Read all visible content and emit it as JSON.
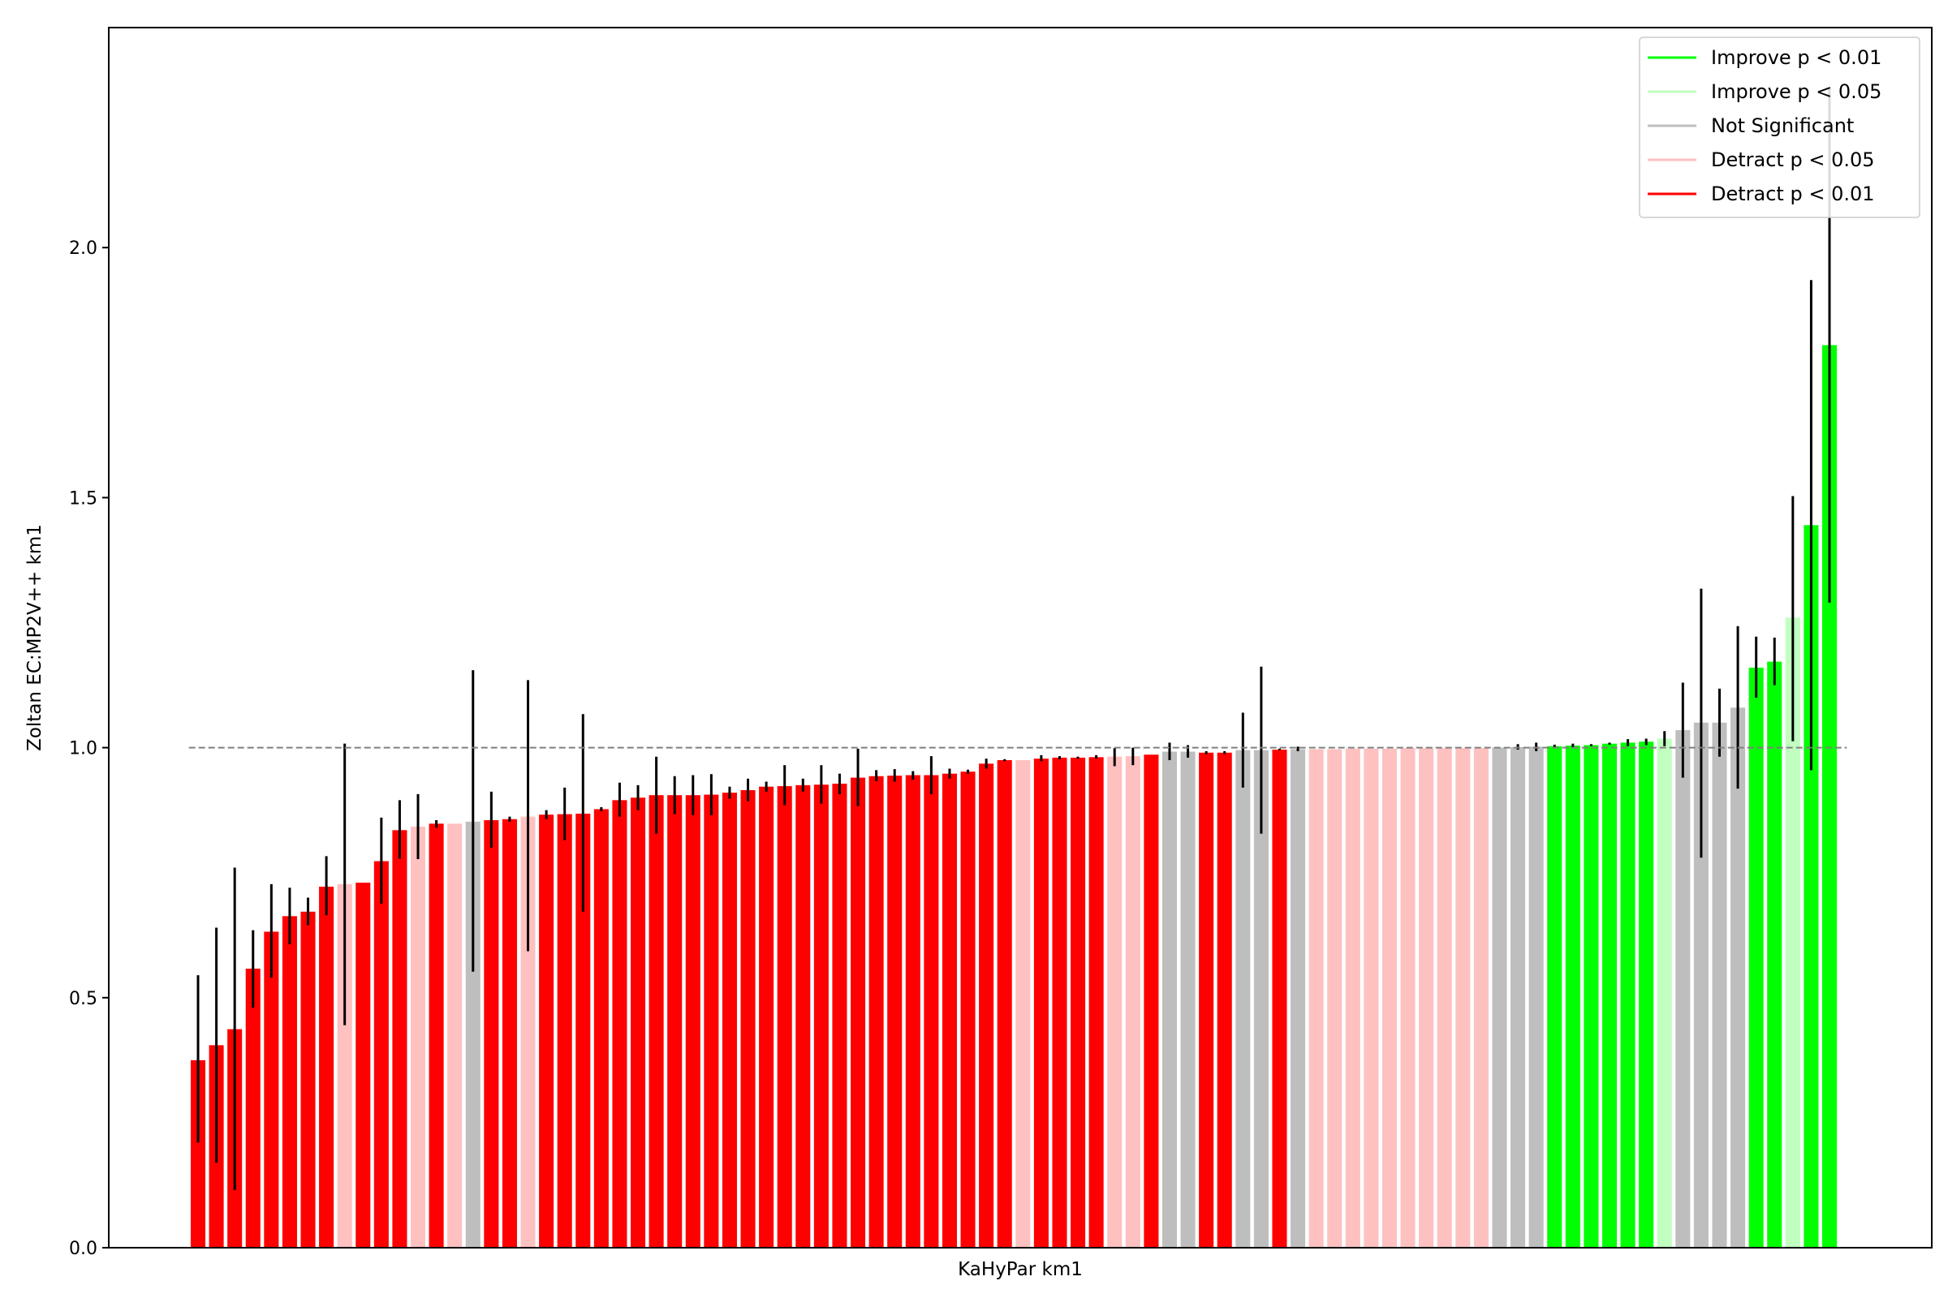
{
  "chart_data": {
    "type": "bar",
    "xlabel": "KaHyPar km1",
    "ylabel": "Zoltan EC:MP2V++ km1",
    "ylim": [
      0,
      2.44
    ],
    "yticks": [
      "0.0",
      "0.5",
      "1.0",
      "1.5",
      "2.0"
    ],
    "reference_line": 1.0,
    "colors": {
      "improve_01": "#00ff00",
      "improve_05": "#c0ffc0",
      "not_significant": "#bebebe",
      "detract_05": "#ffc0c0",
      "detract_01": "#ff0000",
      "error_bar": "#000000",
      "reference_line": "#808080"
    },
    "legend": {
      "placement": "top-right",
      "entries": [
        {
          "label": "Improve p < 0.01",
          "category": "improve_01"
        },
        {
          "label": "Improve p < 0.05",
          "category": "improve_05"
        },
        {
          "label": "Not Significant",
          "category": "not_significant"
        },
        {
          "label": "Detract p < 0.05",
          "category": "detract_05"
        },
        {
          "label": "Detract p < 0.01",
          "category": "detract_01"
        }
      ]
    },
    "bars": [
      {
        "v": 0.375,
        "lo": 0.21,
        "hi": 0.545,
        "c": "detract_01"
      },
      {
        "v": 0.405,
        "lo": 0.17,
        "hi": 0.64,
        "c": "detract_01"
      },
      {
        "v": 0.437,
        "lo": 0.115,
        "hi": 0.76,
        "c": "detract_01"
      },
      {
        "v": 0.558,
        "lo": 0.48,
        "hi": 0.635,
        "c": "detract_01"
      },
      {
        "v": 0.632,
        "lo": 0.54,
        "hi": 0.727,
        "c": "detract_01"
      },
      {
        "v": 0.663,
        "lo": 0.607,
        "hi": 0.72,
        "c": "detract_01"
      },
      {
        "v": 0.672,
        "lo": 0.645,
        "hi": 0.7,
        "c": "detract_01"
      },
      {
        "v": 0.722,
        "lo": 0.665,
        "hi": 0.783,
        "c": "detract_01"
      },
      {
        "v": 0.727,
        "lo": 0.445,
        "hi": 1.008,
        "c": "detract_05"
      },
      {
        "v": 0.73,
        "lo": 0.73,
        "hi": 0.73,
        "c": "detract_01"
      },
      {
        "v": 0.773,
        "lo": 0.688,
        "hi": 0.86,
        "c": "detract_01"
      },
      {
        "v": 0.835,
        "lo": 0.778,
        "hi": 0.895,
        "c": "detract_01"
      },
      {
        "v": 0.842,
        "lo": 0.777,
        "hi": 0.907,
        "c": "detract_05"
      },
      {
        "v": 0.848,
        "lo": 0.84,
        "hi": 0.855,
        "c": "detract_01"
      },
      {
        "v": 0.848,
        "lo": 0.848,
        "hi": 0.848,
        "c": "detract_05"
      },
      {
        "v": 0.852,
        "lo": 0.552,
        "hi": 1.155,
        "c": "not_significant"
      },
      {
        "v": 0.855,
        "lo": 0.8,
        "hi": 0.912,
        "c": "detract_01"
      },
      {
        "v": 0.857,
        "lo": 0.852,
        "hi": 0.862,
        "c": "detract_01"
      },
      {
        "v": 0.862,
        "lo": 0.593,
        "hi": 1.135,
        "c": "detract_05"
      },
      {
        "v": 0.866,
        "lo": 0.857,
        "hi": 0.875,
        "c": "detract_01"
      },
      {
        "v": 0.867,
        "lo": 0.815,
        "hi": 0.92,
        "c": "detract_01"
      },
      {
        "v": 0.868,
        "lo": 0.672,
        "hi": 1.067,
        "c": "detract_01"
      },
      {
        "v": 0.877,
        "lo": 0.873,
        "hi": 0.881,
        "c": "detract_01"
      },
      {
        "v": 0.895,
        "lo": 0.862,
        "hi": 0.93,
        "c": "detract_01"
      },
      {
        "v": 0.9,
        "lo": 0.875,
        "hi": 0.925,
        "c": "detract_01"
      },
      {
        "v": 0.905,
        "lo": 0.828,
        "hi": 0.982,
        "c": "detract_01"
      },
      {
        "v": 0.905,
        "lo": 0.867,
        "hi": 0.943,
        "c": "detract_01"
      },
      {
        "v": 0.905,
        "lo": 0.865,
        "hi": 0.945,
        "c": "detract_01"
      },
      {
        "v": 0.906,
        "lo": 0.865,
        "hi": 0.947,
        "c": "detract_01"
      },
      {
        "v": 0.91,
        "lo": 0.898,
        "hi": 0.922,
        "c": "detract_01"
      },
      {
        "v": 0.915,
        "lo": 0.893,
        "hi": 0.938,
        "c": "detract_01"
      },
      {
        "v": 0.922,
        "lo": 0.912,
        "hi": 0.932,
        "c": "detract_01"
      },
      {
        "v": 0.923,
        "lo": 0.885,
        "hi": 0.965,
        "c": "detract_01"
      },
      {
        "v": 0.925,
        "lo": 0.912,
        "hi": 0.938,
        "c": "detract_01"
      },
      {
        "v": 0.926,
        "lo": 0.888,
        "hi": 0.965,
        "c": "detract_01"
      },
      {
        "v": 0.928,
        "lo": 0.907,
        "hi": 0.948,
        "c": "detract_01"
      },
      {
        "v": 0.94,
        "lo": 0.883,
        "hi": 0.998,
        "c": "detract_01"
      },
      {
        "v": 0.943,
        "lo": 0.933,
        "hi": 0.955,
        "c": "detract_01"
      },
      {
        "v": 0.944,
        "lo": 0.932,
        "hi": 0.957,
        "c": "detract_01"
      },
      {
        "v": 0.945,
        "lo": 0.936,
        "hi": 0.953,
        "c": "detract_01"
      },
      {
        "v": 0.945,
        "lo": 0.907,
        "hi": 0.983,
        "c": "detract_01"
      },
      {
        "v": 0.948,
        "lo": 0.938,
        "hi": 0.958,
        "c": "detract_01"
      },
      {
        "v": 0.952,
        "lo": 0.948,
        "hi": 0.956,
        "c": "detract_01"
      },
      {
        "v": 0.968,
        "lo": 0.958,
        "hi": 0.978,
        "c": "detract_01"
      },
      {
        "v": 0.975,
        "lo": 0.973,
        "hi": 0.977,
        "c": "detract_01"
      },
      {
        "v": 0.975,
        "lo": 0.975,
        "hi": 0.975,
        "c": "detract_05"
      },
      {
        "v": 0.978,
        "lo": 0.973,
        "hi": 0.985,
        "c": "detract_01"
      },
      {
        "v": 0.98,
        "lo": 0.977,
        "hi": 0.983,
        "c": "detract_01"
      },
      {
        "v": 0.98,
        "lo": 0.978,
        "hi": 0.982,
        "c": "detract_01"
      },
      {
        "v": 0.981,
        "lo": 0.978,
        "hi": 0.985,
        "c": "detract_01"
      },
      {
        "v": 0.982,
        "lo": 0.963,
        "hi": 0.999,
        "c": "detract_05"
      },
      {
        "v": 0.983,
        "lo": 0.965,
        "hi": 1.0,
        "c": "detract_05"
      },
      {
        "v": 0.986,
        "lo": 0.986,
        "hi": 0.986,
        "c": "detract_01"
      },
      {
        "v": 0.992,
        "lo": 0.975,
        "hi": 1.01,
        "c": "not_significant"
      },
      {
        "v": 0.992,
        "lo": 0.98,
        "hi": 1.005,
        "c": "not_significant"
      },
      {
        "v": 0.99,
        "lo": 0.987,
        "hi": 0.993,
        "c": "detract_01"
      },
      {
        "v": 0.99,
        "lo": 0.987,
        "hi": 0.993,
        "c": "detract_01"
      },
      {
        "v": 0.995,
        "lo": 0.92,
        "hi": 1.07,
        "c": "not_significant"
      },
      {
        "v": 0.995,
        "lo": 0.828,
        "hi": 1.162,
        "c": "not_significant"
      },
      {
        "v": 0.996,
        "lo": 0.995,
        "hi": 0.998,
        "c": "detract_01"
      },
      {
        "v": 0.997,
        "lo": 0.993,
        "hi": 1.002,
        "c": "not_significant"
      },
      {
        "v": 0.997,
        "lo": 0.997,
        "hi": 0.997,
        "c": "detract_05"
      },
      {
        "v": 0.997,
        "lo": 0.997,
        "hi": 0.997,
        "c": "detract_05"
      },
      {
        "v": 0.998,
        "lo": 0.998,
        "hi": 0.998,
        "c": "detract_05"
      },
      {
        "v": 0.998,
        "lo": 0.998,
        "hi": 0.998,
        "c": "detract_05"
      },
      {
        "v": 0.998,
        "lo": 0.998,
        "hi": 0.998,
        "c": "detract_05"
      },
      {
        "v": 0.999,
        "lo": 0.999,
        "hi": 0.999,
        "c": "detract_05"
      },
      {
        "v": 0.999,
        "lo": 0.999,
        "hi": 0.999,
        "c": "detract_05"
      },
      {
        "v": 0.999,
        "lo": 0.999,
        "hi": 0.999,
        "c": "detract_05"
      },
      {
        "v": 0.999,
        "lo": 0.999,
        "hi": 0.999,
        "c": "detract_05"
      },
      {
        "v": 0.999,
        "lo": 0.999,
        "hi": 0.999,
        "c": "detract_05"
      },
      {
        "v": 1.0,
        "lo": 1.0,
        "hi": 1.0,
        "c": "not_significant"
      },
      {
        "v": 1.001,
        "lo": 0.996,
        "hi": 1.007,
        "c": "not_significant"
      },
      {
        "v": 1.002,
        "lo": 0.993,
        "hi": 1.01,
        "c": "not_significant"
      },
      {
        "v": 1.003,
        "lo": 1.0,
        "hi": 1.006,
        "c": "improve_01"
      },
      {
        "v": 1.004,
        "lo": 1.0,
        "hi": 1.008,
        "c": "improve_01"
      },
      {
        "v": 1.005,
        "lo": 1.003,
        "hi": 1.007,
        "c": "improve_01"
      },
      {
        "v": 1.008,
        "lo": 1.006,
        "hi": 1.01,
        "c": "improve_01"
      },
      {
        "v": 1.01,
        "lo": 1.003,
        "hi": 1.017,
        "c": "improve_01"
      },
      {
        "v": 1.012,
        "lo": 1.005,
        "hi": 1.018,
        "c": "improve_01"
      },
      {
        "v": 1.018,
        "lo": 1.003,
        "hi": 1.033,
        "c": "improve_05"
      },
      {
        "v": 1.035,
        "lo": 0.94,
        "hi": 1.13,
        "c": "not_significant"
      },
      {
        "v": 1.05,
        "lo": 0.78,
        "hi": 1.318,
        "c": "not_significant"
      },
      {
        "v": 1.05,
        "lo": 0.982,
        "hi": 1.118,
        "c": "not_significant"
      },
      {
        "v": 1.08,
        "lo": 0.918,
        "hi": 1.243,
        "c": "not_significant"
      },
      {
        "v": 1.16,
        "lo": 1.1,
        "hi": 1.222,
        "c": "improve_01"
      },
      {
        "v": 1.172,
        "lo": 1.125,
        "hi": 1.22,
        "c": "improve_01"
      },
      {
        "v": 1.26,
        "lo": 1.013,
        "hi": 1.503,
        "c": "improve_05"
      },
      {
        "v": 1.445,
        "lo": 0.955,
        "hi": 1.935,
        "c": "improve_01"
      },
      {
        "v": 1.805,
        "lo": 1.29,
        "hi": 2.32,
        "c": "improve_01"
      }
    ]
  }
}
